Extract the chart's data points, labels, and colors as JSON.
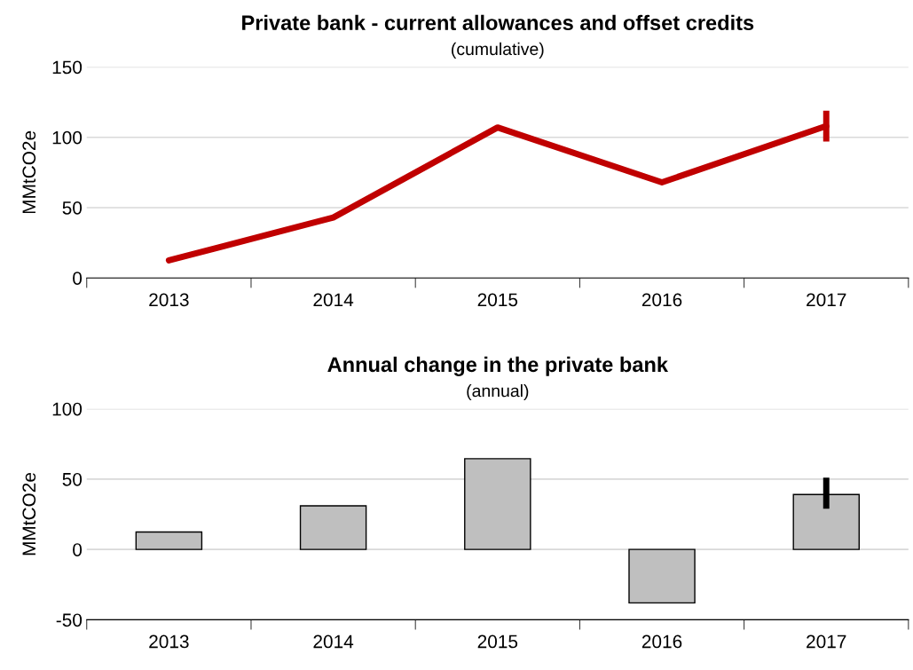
{
  "chart_data": [
    {
      "type": "line",
      "title": "Private bank - current allowances and offset credits",
      "subtitle": "(cumulative)",
      "ylabel": "MMtCO2e",
      "categories": [
        "2013",
        "2014",
        "2015",
        "2016",
        "2017"
      ],
      "series": [
        {
          "color": "#c00000",
          "values": [
            12.5,
            43,
            107,
            68,
            108
          ],
          "errors": [
            null,
            null,
            null,
            null,
            [
              97,
              119
            ]
          ]
        }
      ],
      "ylim": [
        0,
        150
      ],
      "yticks": [
        0,
        50,
        100,
        150
      ],
      "grid": "y",
      "legend": false,
      "marker": "none",
      "line_style": "solid"
    },
    {
      "type": "bar",
      "title": "Annual change in the private bank",
      "subtitle": "(annual)",
      "ylabel": "MMtCO2e",
      "categories": [
        "2013",
        "2014",
        "2015",
        "2016",
        "2017"
      ],
      "series": [
        {
          "color": "#bfbfbf",
          "values": [
            12.4,
            31,
            64.5,
            -38,
            39
          ],
          "errors": [
            null,
            null,
            null,
            null,
            [
              29,
              51
            ]
          ]
        }
      ],
      "ylim": [
        -50,
        100
      ],
      "yticks": [
        -50,
        0,
        50,
        100
      ],
      "grid": "y",
      "legend": false
    }
  ]
}
